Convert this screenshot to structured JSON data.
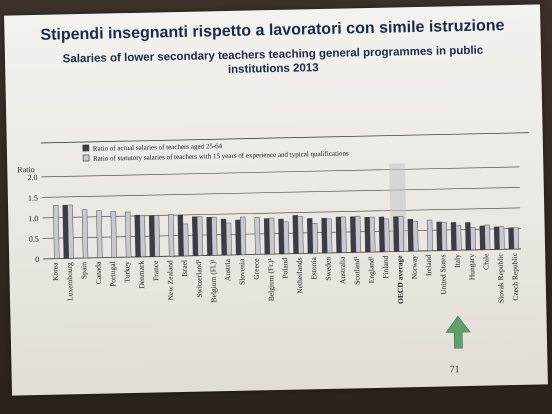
{
  "slide": {
    "title": "Stipendi insegnanti rispetto a lavoratori con simile istruzione",
    "subtitle_line1": "Salaries of lower secondary teachers teaching general programmes in public",
    "subtitle_line2": "institutions 2013",
    "page_number": "71"
  },
  "colors": {
    "actual_bar": "#3c3c46",
    "statutory_bar": "#c8c8d0",
    "highlight": "#c4c4c4",
    "arrow": "#5fa06a",
    "axis": "#444444"
  },
  "chart_data": {
    "type": "bar",
    "ylabel": "Ratio",
    "ylim": [
      0,
      2.0
    ],
    "yticks": [
      "0",
      "0.5",
      "1.0",
      "1.5",
      "2.0"
    ],
    "legend_placement": "top-left",
    "grid": true,
    "categories": [
      "Korea",
      "Luxembourg",
      "Spain",
      "Canada",
      "Portugal",
      "Turkey",
      "Denmark",
      "France",
      "New Zealand",
      "Israel",
      "Switzerland¹",
      "Belgium (Fl.)¹",
      "Austria",
      "Slovenia",
      "Greece",
      "Belgium (Fr.)¹",
      "Poland",
      "Netherlands",
      "Estonia",
      "Sweden",
      "Australia",
      "Scotland¹",
      "England¹",
      "Finland",
      "OECD average",
      "Norway",
      "Ireland",
      "United States",
      "Italy",
      "Hungary",
      "Chile",
      "Slovak Republic",
      "Czech Republic"
    ],
    "highlight_category": "OECD average",
    "arrow_category": "Italy",
    "series": [
      {
        "name": "Ratio of actual salaries of teachers aged 25-64",
        "values": [
          null,
          1.3,
          null,
          null,
          null,
          null,
          1.02,
          1.0,
          null,
          1.0,
          0.95,
          0.93,
          0.88,
          0.85,
          null,
          0.87,
          0.85,
          0.93,
          0.85,
          0.85,
          0.87,
          0.87,
          0.85,
          0.85,
          0.85,
          0.78,
          null,
          0.7,
          0.68,
          0.67,
          0.58,
          0.55,
          0.52
        ]
      },
      {
        "name": "Ratio of statutory salaries of teachers with 15 years of experience and typical qualifications",
        "values": [
          1.3,
          1.3,
          1.18,
          1.15,
          1.12,
          1.1,
          1.0,
          1.0,
          1.02,
          0.78,
          0.95,
          0.93,
          0.78,
          0.92,
          0.9,
          0.88,
          0.78,
          0.9,
          0.73,
          0.83,
          0.87,
          0.88,
          0.85,
          0.8,
          0.85,
          0.72,
          0.75,
          0.68,
          0.6,
          0.55,
          0.6,
          0.55,
          0.52
        ]
      }
    ]
  }
}
